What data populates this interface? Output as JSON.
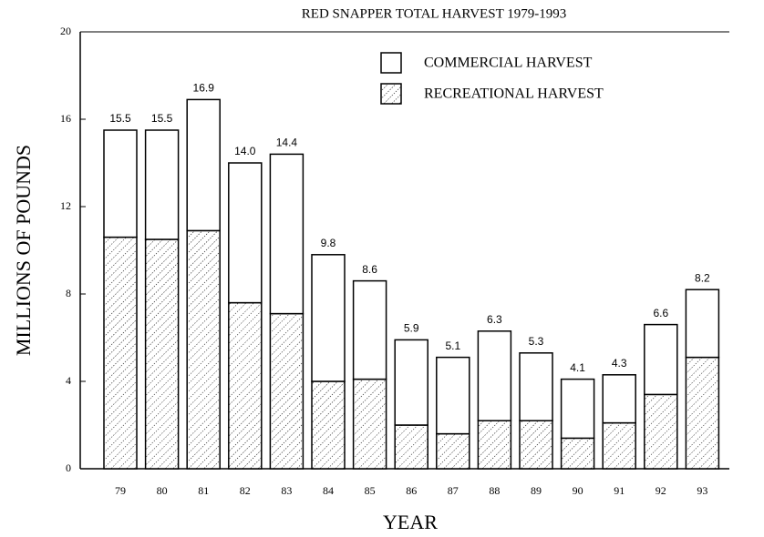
{
  "chart_data": {
    "type": "stacked-bar",
    "title": "RED SNAPPER TOTAL HARVEST 1979-1993",
    "x_label": "YEAR",
    "y_label": "MILLIONS OF POUNDS",
    "categories": [
      "79",
      "80",
      "81",
      "82",
      "83",
      "84",
      "85",
      "86",
      "87",
      "88",
      "89",
      "90",
      "91",
      "92",
      "93"
    ],
    "series": [
      {
        "name": "COMMERCIAL HARVEST",
        "color": "#ffffff",
        "values": [
          4.9,
          5.0,
          6.0,
          6.4,
          7.3,
          5.8,
          4.5,
          3.9,
          3.5,
          4.1,
          3.1,
          2.7,
          2.2,
          3.2,
          3.1
        ]
      },
      {
        "name": "RECREATIONAL HARVEST",
        "color": "#000000",
        "pattern": "dotted-hatch",
        "values": [
          10.6,
          10.5,
          10.9,
          7.6,
          7.1,
          4.0,
          4.1,
          2.0,
          1.6,
          2.2,
          2.2,
          1.4,
          2.1,
          3.4,
          5.1
        ]
      }
    ],
    "totals": [
      15.5,
      15.5,
      16.9,
      14.0,
      14.4,
      9.8,
      8.6,
      5.9,
      5.1,
      6.3,
      5.3,
      4.1,
      4.3,
      6.6,
      8.2
    ],
    "totals_labels": [
      "15.5",
      "15.5",
      "16.9",
      "14.0",
      "14.4",
      "9.8",
      "8.6",
      "5.9",
      "5.1",
      "6.3",
      "5.3",
      "4.1",
      "4.3",
      "6.6",
      "8.2"
    ],
    "ylim": [
      0,
      20
    ],
    "yticks": [
      0,
      4,
      8,
      12,
      16,
      20
    ],
    "grid": false,
    "legend": "top-right"
  }
}
